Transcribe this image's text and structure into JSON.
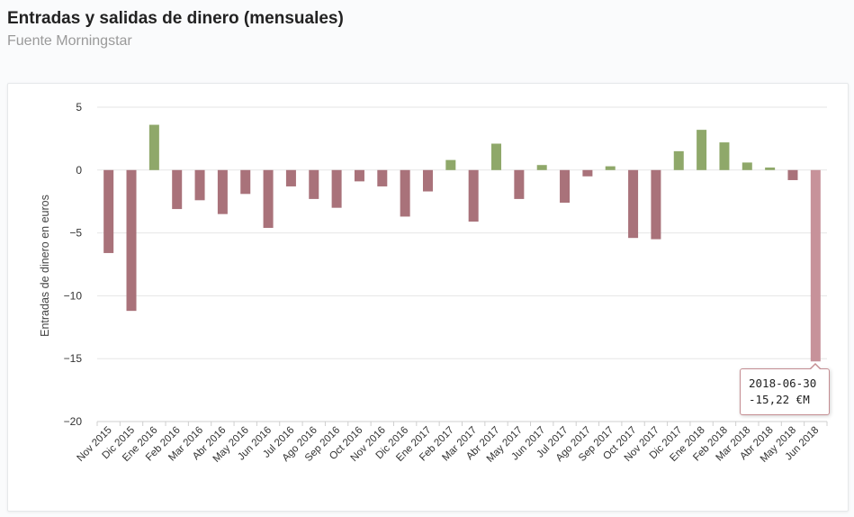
{
  "header": {
    "title": "Entradas y salidas de dinero (mensuales)",
    "subtitle": "Fuente Morningstar"
  },
  "colors": {
    "positive": "#8fa86a",
    "negative": "#a9727a",
    "highlight": "#c7929a",
    "grid": "#e6e6e6"
  },
  "tooltip": {
    "date": "2018-06-30",
    "value": "-15,22 €M"
  },
  "chart_data": {
    "type": "bar",
    "ylabel": "Entradas de dinero en euros",
    "ylim": [
      -20,
      5
    ],
    "yticks": [
      5,
      0,
      -5,
      -10,
      -15,
      -20
    ],
    "ytick_labels": [
      "5",
      "0",
      "−5",
      "−10",
      "−15",
      "−20"
    ],
    "grid": true,
    "categories": [
      "Nov 2015",
      "Dic 2015",
      "Ene 2016",
      "Feb 2016",
      "Mar 2016",
      "Abr 2016",
      "May 2016",
      "Jun 2016",
      "Jul 2016",
      "Ago 2016",
      "Sep 2016",
      "Oct 2016",
      "Nov 2016",
      "Dic 2016",
      "Ene 2017",
      "Feb 2017",
      "Mar 2017",
      "Abr 2017",
      "May 2017",
      "Jun 2017",
      "Jul 2017",
      "Ago 2017",
      "Sep 2017",
      "Oct 2017",
      "Nov 2017",
      "Dic 2017",
      "Ene 2018",
      "Feb 2018",
      "Mar 2018",
      "Abr 2018",
      "May 2018",
      "Jun 2018"
    ],
    "values": [
      -6.6,
      -11.2,
      3.6,
      -3.1,
      -2.4,
      -3.5,
      -1.9,
      -4.6,
      -1.3,
      -2.3,
      -3.0,
      -0.9,
      -1.3,
      -3.7,
      -1.7,
      0.8,
      -4.1,
      2.1,
      -2.3,
      0.4,
      -2.6,
      -0.5,
      0.3,
      -5.4,
      -5.5,
      1.5,
      3.2,
      2.2,
      0.6,
      0.2,
      -0.8,
      -15.22
    ],
    "highlight_index": 31
  }
}
